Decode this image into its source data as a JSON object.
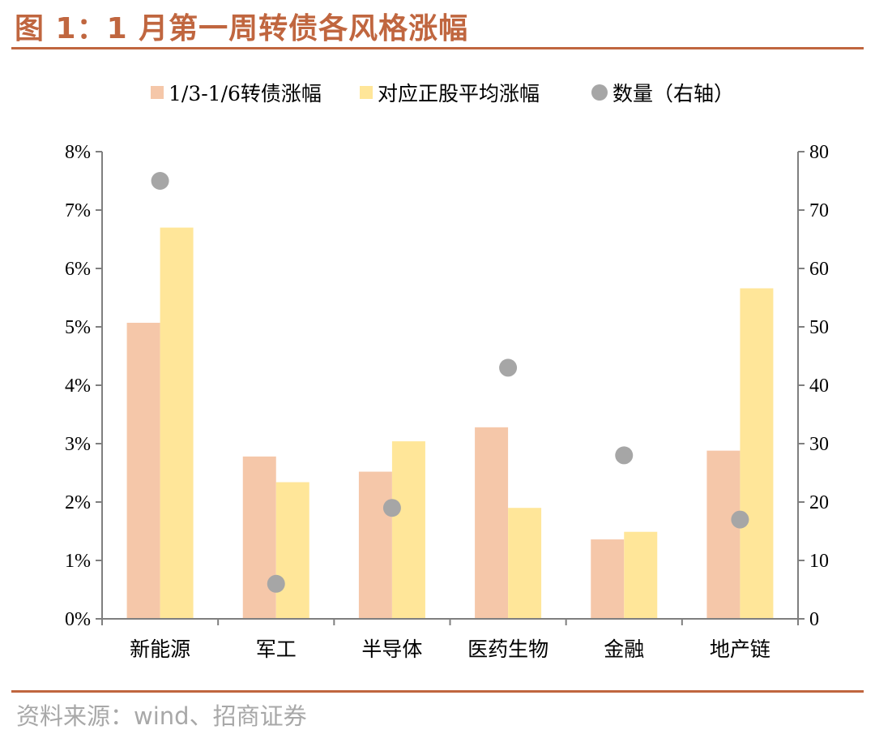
{
  "title": "图 1：1 月第一周转债各风格涨幅",
  "source": "资料来源：wind、招商证券",
  "chart_data": {
    "type": "bar",
    "categories": [
      "新能源",
      "军工",
      "半导体",
      "医药生物",
      "金融",
      "地产链"
    ],
    "series": [
      {
        "name": "1/3-1/6转债涨幅",
        "type": "bar",
        "axis": "left",
        "color": "#F5C7A9",
        "values": [
          5.07,
          2.78,
          2.52,
          3.28,
          1.36,
          2.88
        ]
      },
      {
        "name": "对应正股平均涨幅",
        "type": "bar",
        "axis": "left",
        "color": "#FFE699",
        "values": [
          6.7,
          2.34,
          3.04,
          1.9,
          1.49,
          5.66
        ]
      },
      {
        "name": "数量（右轴）",
        "type": "scatter",
        "axis": "right",
        "color": "#A6A6A6",
        "values": [
          75,
          6,
          19,
          43,
          28,
          17
        ]
      }
    ],
    "ylim_left": [
      0,
      8
    ],
    "ylim_right": [
      0,
      80
    ],
    "left_ticks": [
      "0%",
      "1%",
      "2%",
      "3%",
      "4%",
      "5%",
      "6%",
      "7%",
      "8%"
    ],
    "right_ticks": [
      "0",
      "10",
      "20",
      "30",
      "40",
      "50",
      "60",
      "70",
      "80"
    ],
    "legend_position": "top",
    "grid": false
  }
}
